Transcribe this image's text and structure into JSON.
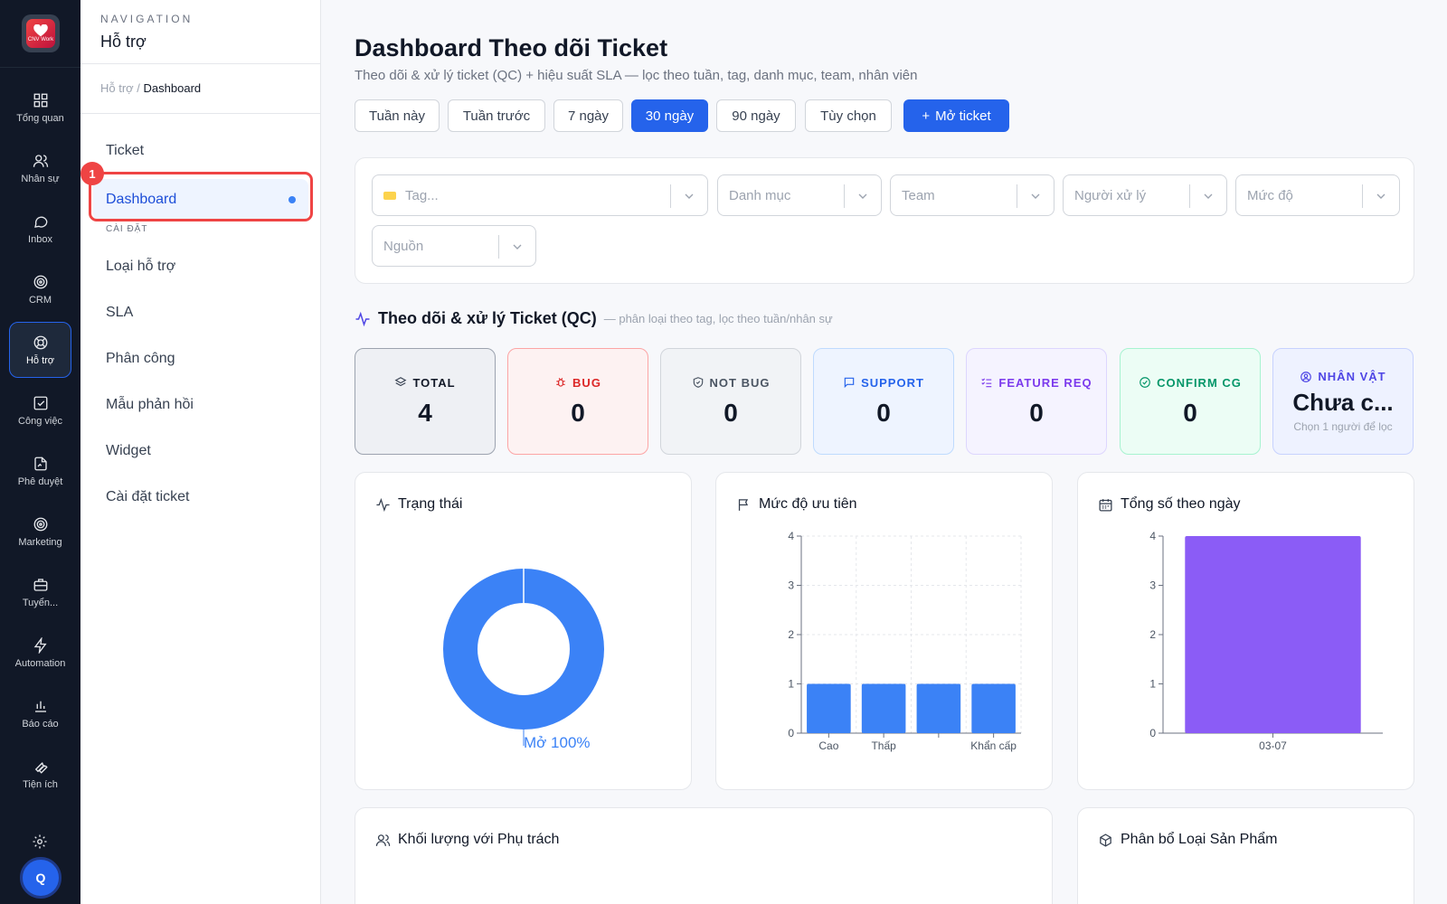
{
  "app": {
    "logo_text": "CNV Work"
  },
  "rail": {
    "items": [
      {
        "label": "Tổng quan",
        "icon": "dashboard-grid-icon"
      },
      {
        "label": "Nhân sự",
        "icon": "users-icon"
      },
      {
        "label": "Inbox",
        "icon": "chat-bubble-icon"
      },
      {
        "label": "CRM",
        "icon": "target-icon"
      },
      {
        "label": "Hỗ trợ",
        "icon": "lifebuoy-icon",
        "active": true
      },
      {
        "label": "Công việc",
        "icon": "checkbox-icon"
      },
      {
        "label": "Phê duyệt",
        "icon": "file-sign-icon"
      },
      {
        "label": "Marketing",
        "icon": "target-icon"
      },
      {
        "label": "Tuyển...",
        "icon": "briefcase-icon"
      },
      {
        "label": "Automation",
        "icon": "lightning-icon"
      },
      {
        "label": "Báo cáo",
        "icon": "bar-chart-icon"
      },
      {
        "label": "Tiện ích",
        "icon": "wrench-icon"
      }
    ],
    "avatar_letter": "Q"
  },
  "subnav": {
    "kicker": "NAVIGATION",
    "title": "Hỗ trợ",
    "breadcrumb_parent": "Hỗ trợ /",
    "breadcrumb_current": "Dashboard",
    "items": {
      "ticket": "Ticket",
      "dashboard": "Dashboard",
      "section_settings": "CÀI ĐẶT",
      "support_types": "Loại hỗ trợ",
      "sla": "SLA",
      "assignment": "Phân công",
      "reply_templates": "Mẫu phản hồi",
      "widget": "Widget",
      "ticket_settings": "Cài đặt ticket"
    },
    "annotation_badge": "1"
  },
  "header": {
    "title": "Dashboard Theo dõi Ticket",
    "subtitle": "Theo dõi & xử lý ticket (QC) + hiệu suất SLA — lọc theo tuần, tag, danh mục, team, nhân viên"
  },
  "ranges": {
    "this_week": "Tuần này",
    "last_week": "Tuần trước",
    "d7": "7 ngày",
    "d30": "30 ngày",
    "d90": "90 ngày",
    "custom": "Tùy chọn",
    "selected": "30 ngày"
  },
  "open_ticket_label": "Mở ticket",
  "filters": {
    "tag": "Tag...",
    "category": "Danh mục",
    "team": "Team",
    "assignee": "Người xử lý",
    "priority": "Mức độ",
    "source": "Nguồn"
  },
  "section": {
    "title": "Theo dõi & xử lý Ticket (QC)",
    "subtitle": "— phân loại theo tag, lọc theo tuần/nhân sự"
  },
  "stats": {
    "total": {
      "label": "TOTAL",
      "value": "4"
    },
    "bug": {
      "label": "BUG",
      "value": "0",
      "color": "#dc2626"
    },
    "not_bug": {
      "label": "NOT BUG",
      "value": "0",
      "color": "#4b5563"
    },
    "support": {
      "label": "SUPPORT",
      "value": "0",
      "color": "#2563eb"
    },
    "feature_req": {
      "label": "FEATURE REQ",
      "value": "0",
      "color": "#7c3aed"
    },
    "confirm_cg": {
      "label": "CONFIRM CG",
      "value": "0",
      "color": "#059669"
    },
    "character": {
      "label": "NHÂN VẬT",
      "value": "Chưa c...",
      "hint": "Chọn 1 người để lọc",
      "color": "#4f46e5"
    }
  },
  "cards": {
    "status": "Trạng thái",
    "priority": "Mức độ ưu tiên",
    "daily": "Tổng số theo ngày",
    "workload": "Khối lượng với Phụ trách",
    "product_types": "Phân bổ Loại Sản Phẩm"
  },
  "chart_data": [
    {
      "type": "pie",
      "title": "Trạng thái",
      "labels": [
        "Mở"
      ],
      "values": [
        100
      ],
      "data_labels": [
        "Mở 100%"
      ],
      "color": "#3b82f6"
    },
    {
      "type": "bar",
      "title": "Mức độ ưu tiên",
      "categories": [
        "Cao",
        "Thấp",
        "",
        "Khẩn cấp"
      ],
      "values": [
        1,
        1,
        1,
        1
      ],
      "ylim": [
        0,
        4
      ],
      "yticks": [
        "0",
        "1",
        "2",
        "3",
        "4"
      ],
      "grid": true,
      "color": "#3b82f6"
    },
    {
      "type": "bar",
      "title": "Tổng số theo ngày",
      "categories": [
        "03-07"
      ],
      "values": [
        4
      ],
      "ylim": [
        0,
        4
      ],
      "yticks": [
        "0",
        "1",
        "2",
        "3",
        "4"
      ],
      "grid": false,
      "color": "#8b5cf6"
    }
  ]
}
